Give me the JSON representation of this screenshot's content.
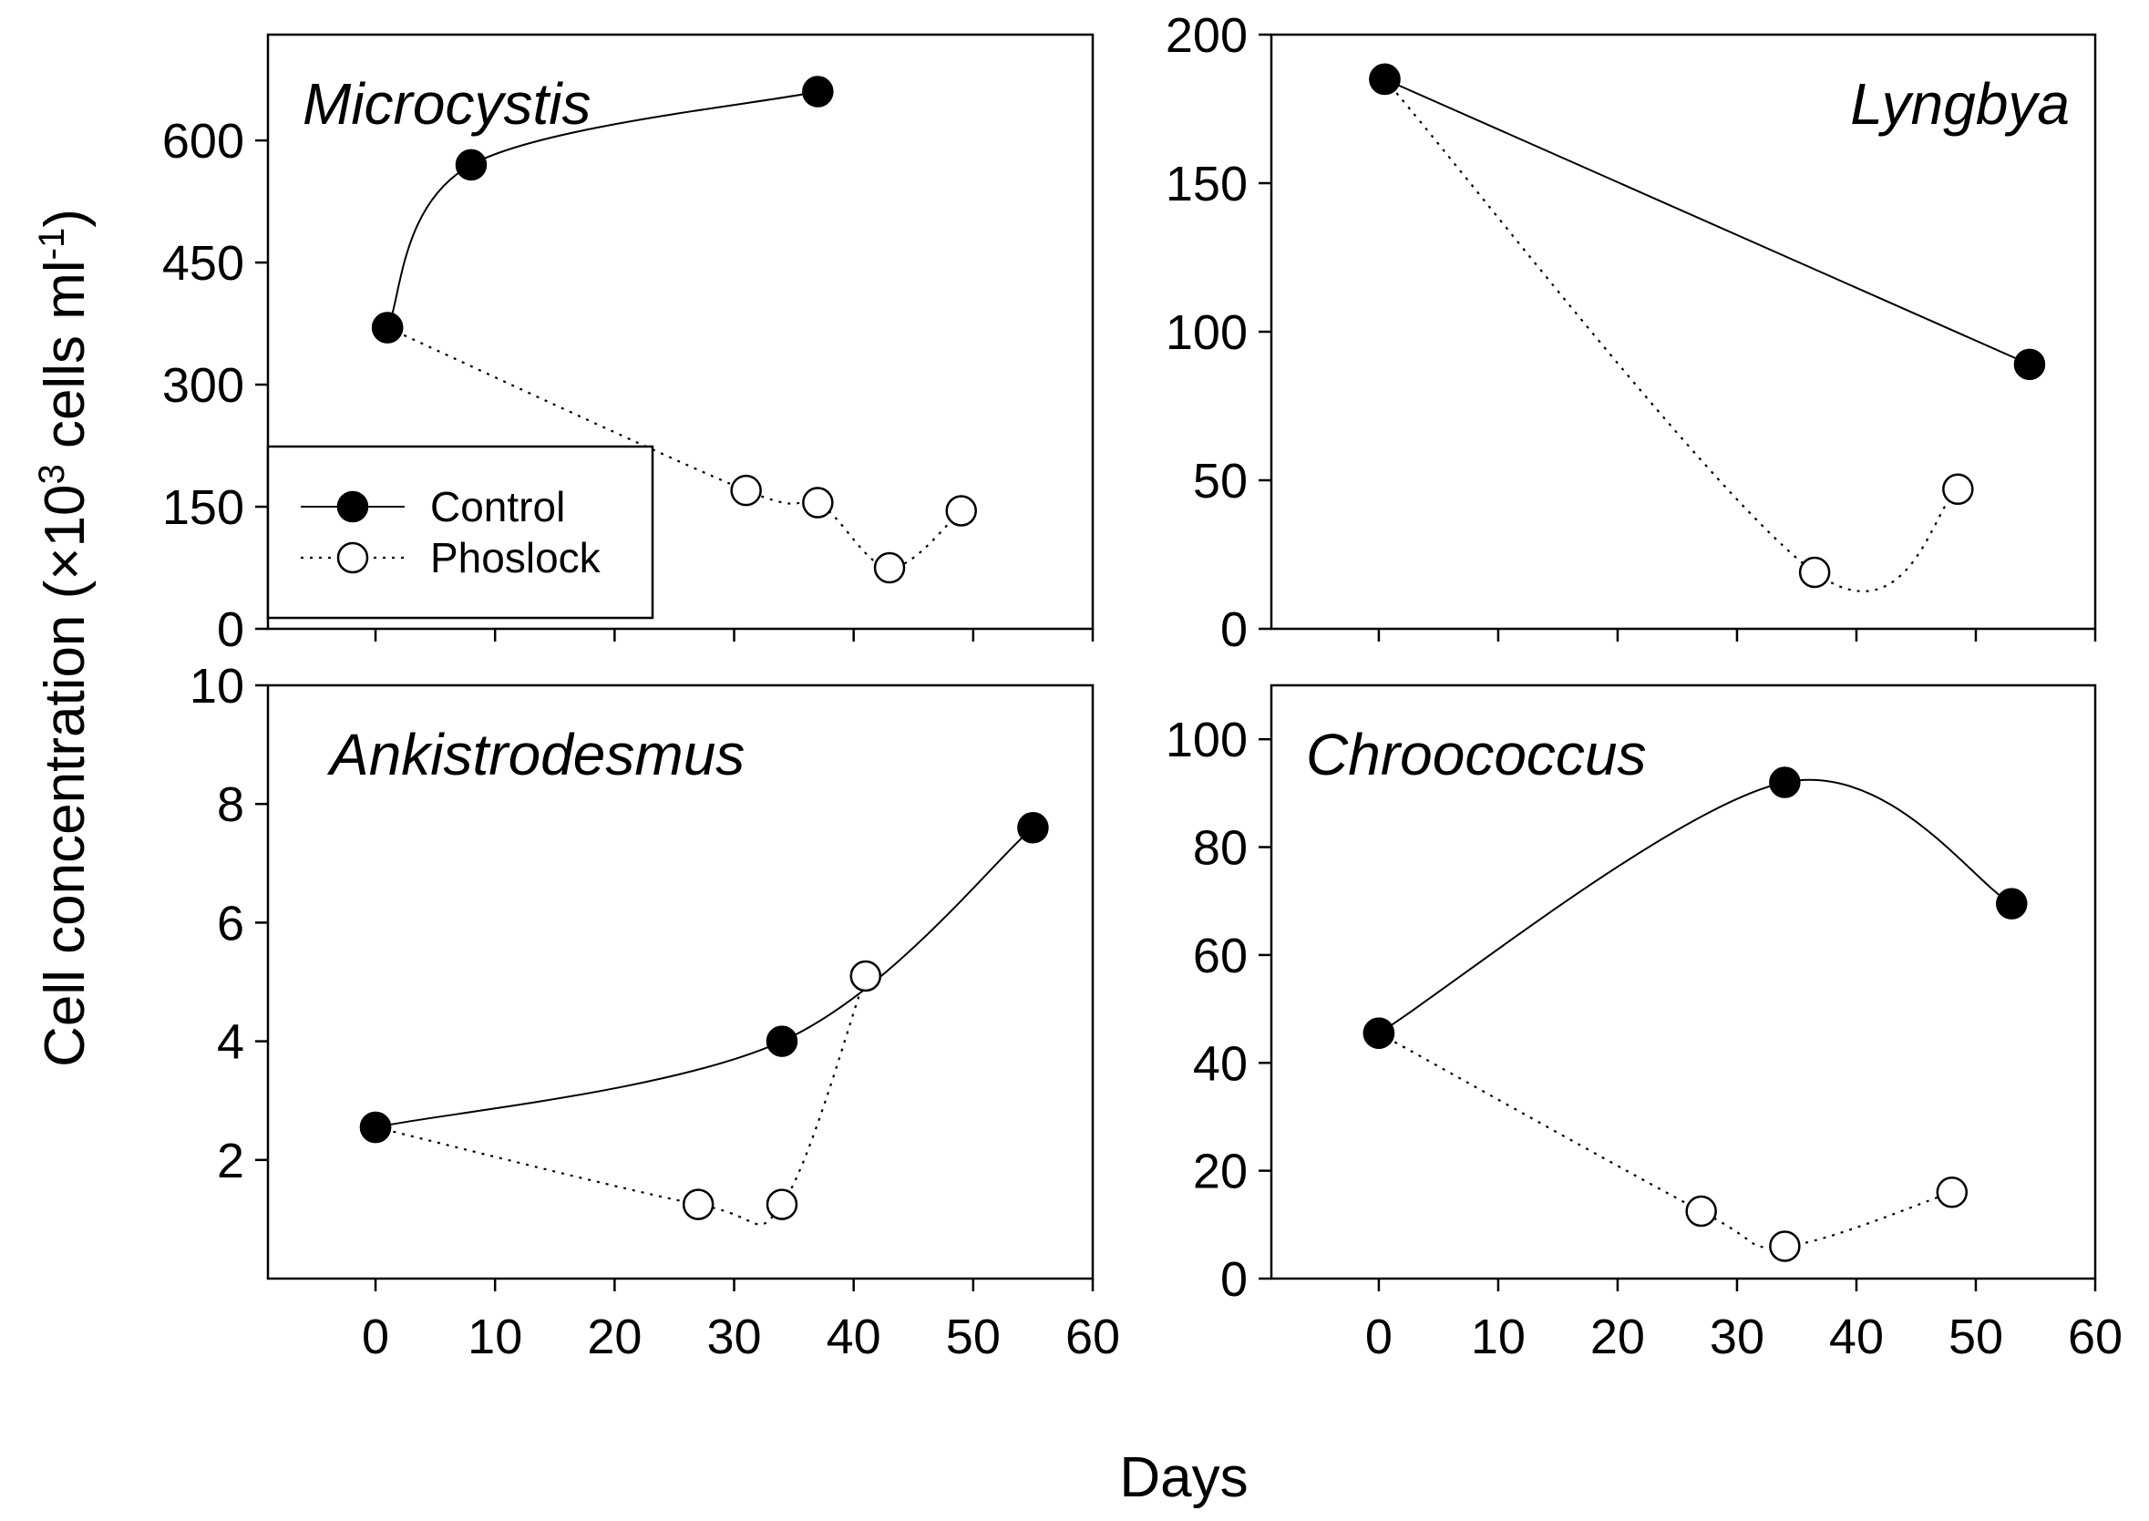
{
  "figure": {
    "ylabel_main": "Cell concentration (×10",
    "ylabel_sup1": "3",
    "ylabel_mid": " cells ml",
    "ylabel_sup2": "-1",
    "ylabel_end": ")",
    "xlabel": "Days"
  },
  "legend": {
    "control_label": "Control",
    "phoslock_label": "Phoslock"
  },
  "colors": {
    "control_fill": "#000000",
    "phoslock_fill": "#ffffff",
    "stroke": "#000000"
  },
  "chart_data": [
    {
      "type": "line",
      "title": "Microcystis",
      "title_position": "top-left",
      "xlabel": "Days",
      "ylabel": "Cell concentration (×10³ cells ml⁻¹)",
      "xlim": [
        -9,
        60
      ],
      "ylim": [
        0,
        730
      ],
      "xticks": [
        0,
        10,
        20,
        30,
        40,
        50,
        60
      ],
      "xtick_labels_shown": false,
      "yticks": [
        0,
        150,
        300,
        450,
        600
      ],
      "series": [
        {
          "name": "Control",
          "marker": "filled",
          "x": [
            1,
            8,
            37
          ],
          "y": [
            370,
            570,
            660
          ]
        },
        {
          "name": "Phoslock",
          "marker": "open",
          "x": [
            1,
            31,
            37,
            43,
            49
          ],
          "y": [
            370,
            170,
            155,
            75,
            145
          ]
        }
      ],
      "legend": "lower-left"
    },
    {
      "type": "line",
      "title": "Lyngbya",
      "title_position": "top-right",
      "xlabel": "Days",
      "ylabel": "Cell concentration (×10³ cells ml⁻¹)",
      "xlim": [
        -9,
        60
      ],
      "ylim": [
        0,
        200
      ],
      "xticks": [
        0,
        10,
        20,
        30,
        40,
        50,
        60
      ],
      "xtick_labels_shown": false,
      "yticks": [
        0,
        50,
        100,
        150,
        200
      ],
      "series": [
        {
          "name": "Control",
          "marker": "filled",
          "x": [
            0.5,
            54.5
          ],
          "y": [
            185,
            89
          ]
        },
        {
          "name": "Phoslock",
          "marker": "open",
          "x": [
            0.5,
            36.5,
            48.5
          ],
          "y": [
            185,
            19,
            47
          ]
        }
      ]
    },
    {
      "type": "line",
      "title": "Ankistrodesmus",
      "title_position": "top-left",
      "xlabel": "Days",
      "ylabel": "Cell concentration (×10³ cells ml⁻¹)",
      "xlim": [
        -9,
        60
      ],
      "ylim": [
        0,
        10
      ],
      "xticks": [
        0,
        10,
        20,
        30,
        40,
        50,
        60
      ],
      "yticks": [
        2,
        4,
        6,
        8,
        10
      ],
      "series": [
        {
          "name": "Control",
          "marker": "filled",
          "x": [
            0,
            34,
            55
          ],
          "y": [
            2.55,
            4.0,
            7.6
          ]
        },
        {
          "name": "Phoslock",
          "marker": "open",
          "x": [
            0,
            27,
            34,
            41
          ],
          "y": [
            2.55,
            1.25,
            1.25,
            5.1
          ]
        }
      ]
    },
    {
      "type": "line",
      "title": "Chroococcus",
      "title_position": "top-left",
      "xlabel": "Days",
      "ylabel": "Cell concentration (×10³ cells ml⁻¹)",
      "xlim": [
        -9,
        60
      ],
      "ylim": [
        0,
        110
      ],
      "xticks": [
        0,
        10,
        20,
        30,
        40,
        50,
        60
      ],
      "yticks": [
        0,
        20,
        40,
        60,
        80,
        100
      ],
      "series": [
        {
          "name": "Control",
          "marker": "filled",
          "x": [
            0,
            34,
            53
          ],
          "y": [
            45.5,
            92,
            69.5
          ]
        },
        {
          "name": "Phoslock",
          "marker": "open",
          "x": [
            0,
            27,
            34,
            48
          ],
          "y": [
            45.5,
            12.5,
            6,
            16
          ]
        }
      ]
    }
  ]
}
